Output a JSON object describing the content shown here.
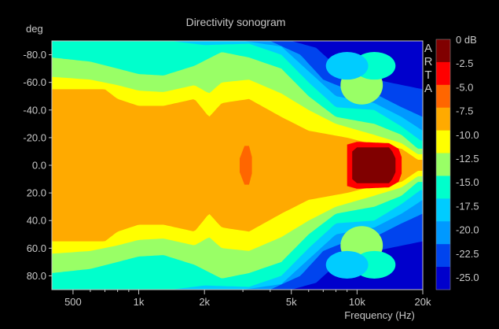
{
  "chart_data": {
    "type": "heatmap",
    "title": "Directivity sonogram",
    "watermark": "ARTA",
    "xlabel": "Frequency (Hz)",
    "ylabel": "deg",
    "x_scale": "log",
    "xlim": [
      400,
      20000
    ],
    "ylim": [
      -90,
      90
    ],
    "x_ticks": [
      {
        "value": 500,
        "label": "500"
      },
      {
        "value": 1000,
        "label": "1k"
      },
      {
        "value": 2000,
        "label": "2k"
      },
      {
        "value": 5000,
        "label": "5k"
      },
      {
        "value": 10000,
        "label": "10k"
      },
      {
        "value": 20000,
        "label": "20k"
      }
    ],
    "x_minor_ticks": [
      600,
      700,
      800,
      900,
      3000,
      4000,
      6000,
      7000,
      8000,
      9000
    ],
    "y_ticks": [
      {
        "value": -80,
        "label": "-80.0"
      },
      {
        "value": -60,
        "label": "-60.0"
      },
      {
        "value": -40,
        "label": "-40.0"
      },
      {
        "value": -20,
        "label": "-20.0"
      },
      {
        "value": 0,
        "label": "0.0"
      },
      {
        "value": 20,
        "label": "20.0"
      },
      {
        "value": 40,
        "label": "40.0"
      },
      {
        "value": 60,
        "label": "60.0"
      },
      {
        "value": 80,
        "label": "80.0"
      }
    ],
    "colorbar": {
      "unit": "dB",
      "labels": [
        "0 dB",
        "-2.5",
        "-5.0",
        "-7.5",
        "-10.0",
        "-12.5",
        "-15.0",
        "-17.5",
        "-20.0",
        "-22.5",
        "-25.0"
      ],
      "levels": [
        {
          "from": 0,
          "to": -2.5,
          "color": "#800000"
        },
        {
          "from": -2.5,
          "to": -5,
          "color": "#ff0000"
        },
        {
          "from": -5,
          "to": -7.5,
          "color": "#ff6600"
        },
        {
          "from": -7.5,
          "to": -10,
          "color": "#ffaa00"
        },
        {
          "from": -10,
          "to": -12.5,
          "color": "#ffff00"
        },
        {
          "from": -12.5,
          "to": -15,
          "color": "#99ff66"
        },
        {
          "from": -15,
          "to": -17.5,
          "color": "#00ffcc"
        },
        {
          "from": -17.5,
          "to": -20,
          "color": "#00ccff"
        },
        {
          "from": -20,
          "to": -22.5,
          "color": "#0099ff"
        },
        {
          "from": -22.5,
          "to": -25,
          "color": "#0044ee"
        },
        {
          "from": -25,
          "to": -30,
          "color": "#0000cc"
        }
      ]
    },
    "bands": [
      {
        "level_db": -7.5,
        "half_width_deg": [
          [
            400,
            55
          ],
          [
            700,
            55
          ],
          [
            800,
            48
          ],
          [
            1000,
            43
          ],
          [
            1300,
            43
          ],
          [
            1800,
            48
          ],
          [
            2100,
            35
          ],
          [
            2400,
            45
          ],
          [
            3200,
            48
          ],
          [
            4500,
            35
          ],
          [
            6000,
            25
          ],
          [
            9000,
            20
          ],
          [
            12000,
            15
          ],
          [
            16000,
            12
          ],
          [
            19000,
            4
          ]
        ]
      },
      {
        "level_db": -10,
        "half_width_deg": [
          [
            400,
            64
          ],
          [
            600,
            62
          ],
          [
            800,
            58
          ],
          [
            1000,
            54
          ],
          [
            1300,
            53
          ],
          [
            1800,
            58
          ],
          [
            2100,
            52
          ],
          [
            2400,
            60
          ],
          [
            3200,
            62
          ],
          [
            4500,
            52
          ],
          [
            6000,
            40
          ],
          [
            8000,
            30
          ],
          [
            12000,
            22
          ],
          [
            16000,
            16
          ],
          [
            19000,
            8
          ]
        ]
      },
      {
        "level_db": -12.5,
        "half_width_deg": [
          [
            400,
            78
          ],
          [
            600,
            75
          ],
          [
            800,
            70
          ],
          [
            1000,
            66
          ],
          [
            1300,
            65
          ],
          [
            1800,
            72
          ],
          [
            2400,
            82
          ],
          [
            3200,
            78
          ],
          [
            4500,
            70
          ],
          [
            6000,
            50
          ],
          [
            8000,
            35
          ],
          [
            12000,
            30
          ],
          [
            16000,
            22
          ],
          [
            19000,
            12
          ]
        ]
      },
      {
        "level_db": -15,
        "half_width_deg": [
          [
            400,
            90
          ],
          [
            1400,
            90
          ],
          [
            2000,
            87
          ],
          [
            3200,
            88
          ],
          [
            4500,
            80
          ],
          [
            6000,
            60
          ],
          [
            8000,
            42
          ],
          [
            12000,
            40
          ],
          [
            16000,
            28
          ],
          [
            19500,
            18
          ]
        ]
      },
      {
        "level_db": -17.5,
        "half_width_deg": [
          [
            400,
            90
          ],
          [
            3000,
            90
          ],
          [
            4500,
            86
          ],
          [
            6000,
            68
          ],
          [
            8000,
            50
          ],
          [
            12000,
            45
          ],
          [
            16000,
            35
          ],
          [
            20000,
            25
          ]
        ]
      },
      {
        "level_db": -20,
        "half_width_deg": [
          [
            400,
            90
          ],
          [
            4000,
            90
          ],
          [
            5500,
            80
          ],
          [
            7000,
            62
          ],
          [
            9000,
            55
          ],
          [
            12000,
            52
          ],
          [
            16000,
            42
          ],
          [
            20000,
            35
          ]
        ]
      },
      {
        "level_db": -22.5,
        "half_width_deg": [
          [
            400,
            90
          ],
          [
            5000,
            90
          ],
          [
            6500,
            85
          ],
          [
            8000,
            72
          ],
          [
            10000,
            65
          ],
          [
            14000,
            60
          ],
          [
            20000,
            55
          ]
        ]
      }
    ],
    "peaks": [
      {
        "level_db": -2.5,
        "x_range": [
          9000,
          16000
        ],
        "half_width_deg": [
          [
            9000,
            15
          ],
          [
            10000,
            17
          ],
          [
            14000,
            16
          ],
          [
            15500,
            12
          ],
          [
            16000,
            6
          ]
        ]
      },
      {
        "level_db": 0,
        "x_range": [
          9500,
          15000
        ],
        "half_width_deg": [
          [
            9500,
            10
          ],
          [
            10000,
            13
          ],
          [
            14000,
            13
          ],
          [
            14500,
            10
          ],
          [
            15000,
            5
          ]
        ]
      },
      {
        "level_db": -5,
        "x_range": [
          2900,
          3300
        ],
        "half_width_deg": [
          [
            2900,
            5
          ],
          [
            3050,
            14
          ],
          [
            3200,
            14
          ],
          [
            3300,
            6
          ]
        ]
      }
    ],
    "side_lobes": [
      {
        "level_db": -12.5,
        "center": [
          10500,
          -58
        ],
        "radius": [
          1.0,
          6
        ],
        "half_height_deg": 14
      },
      {
        "level_db": -12.5,
        "center": [
          10500,
          58
        ],
        "radius": [
          1.0,
          6
        ],
        "half_height_deg": 14
      },
      {
        "level_db": -15,
        "center": [
          12000,
          -72
        ],
        "radius": [
          1.0,
          8
        ],
        "half_height_deg": 10
      },
      {
        "level_db": -15,
        "center": [
          12000,
          72
        ],
        "radius": [
          1.0,
          8
        ],
        "half_height_deg": 10
      },
      {
        "level_db": -17.5,
        "center": [
          9000,
          -72
        ],
        "radius": [
          1.0,
          6
        ],
        "half_height_deg": 10
      },
      {
        "level_db": -17.5,
        "center": [
          9000,
          72
        ],
        "radius": [
          1.0,
          6
        ],
        "half_height_deg": 10
      }
    ]
  }
}
